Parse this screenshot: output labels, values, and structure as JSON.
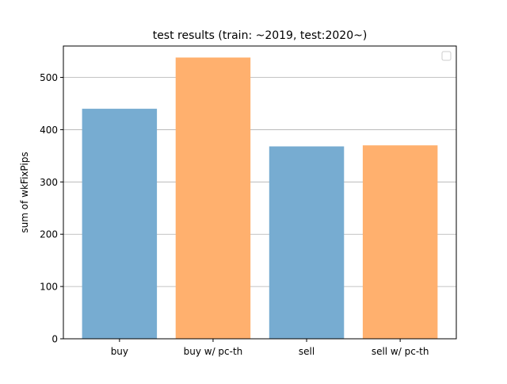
{
  "chart_data": {
    "type": "bar",
    "title": "test results (train: ~2019, test:2020~)",
    "xlabel": "",
    "ylabel": "sum of wkFixPips",
    "categories": [
      "buy",
      "buy w/ pc-th",
      "sell",
      "sell w/ pc-th"
    ],
    "values": [
      440,
      538,
      368,
      370
    ],
    "bar_colors": [
      "#77acd1",
      "#ffb06e",
      "#77acd1",
      "#ffb06e"
    ],
    "ylim": [
      0,
      560
    ],
    "yticks": [
      0,
      100,
      200,
      300,
      400,
      500
    ],
    "grid": "horizontal",
    "legend": {
      "placement": "top-right",
      "entries": []
    }
  }
}
